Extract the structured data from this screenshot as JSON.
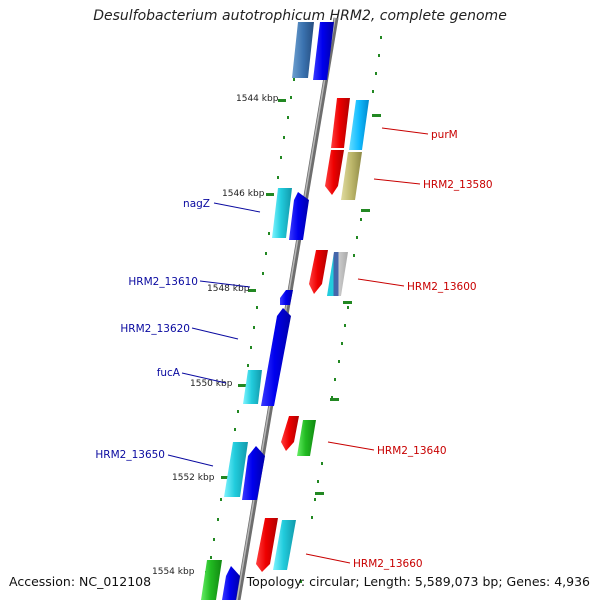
{
  "map": {
    "title": "Desulfobacterium autotrophicum HRM2, complete genome",
    "accession": "Accession: NC_012108",
    "summary": "Topology: circular; Length: 5,589,073 bp; Genes: 4,936",
    "kbp_labels": [
      "1544 kbp",
      "1546 kbp",
      "1548 kbp",
      "1550 kbp",
      "1552 kbp",
      "1554 kbp"
    ],
    "gene_labels_left": [
      "nagZ",
      "HRM2_13610",
      "HRM2_13620",
      "fucA",
      "HRM2_13650"
    ],
    "gene_labels_right": [
      "purM",
      "HRM2_13580",
      "HRM2_13600",
      "HRM2_13640",
      "HRM2_13660"
    ],
    "colors": {
      "forward_label": "#0a0aa0",
      "reverse_label": "#c80000",
      "blue": "#0000ee",
      "red": "#ee0000",
      "cyan": "#22ccdd",
      "green": "#22bb22",
      "olive": "#bdb76b",
      "tick_green": "#228822",
      "backbone": "#888888"
    }
  }
}
